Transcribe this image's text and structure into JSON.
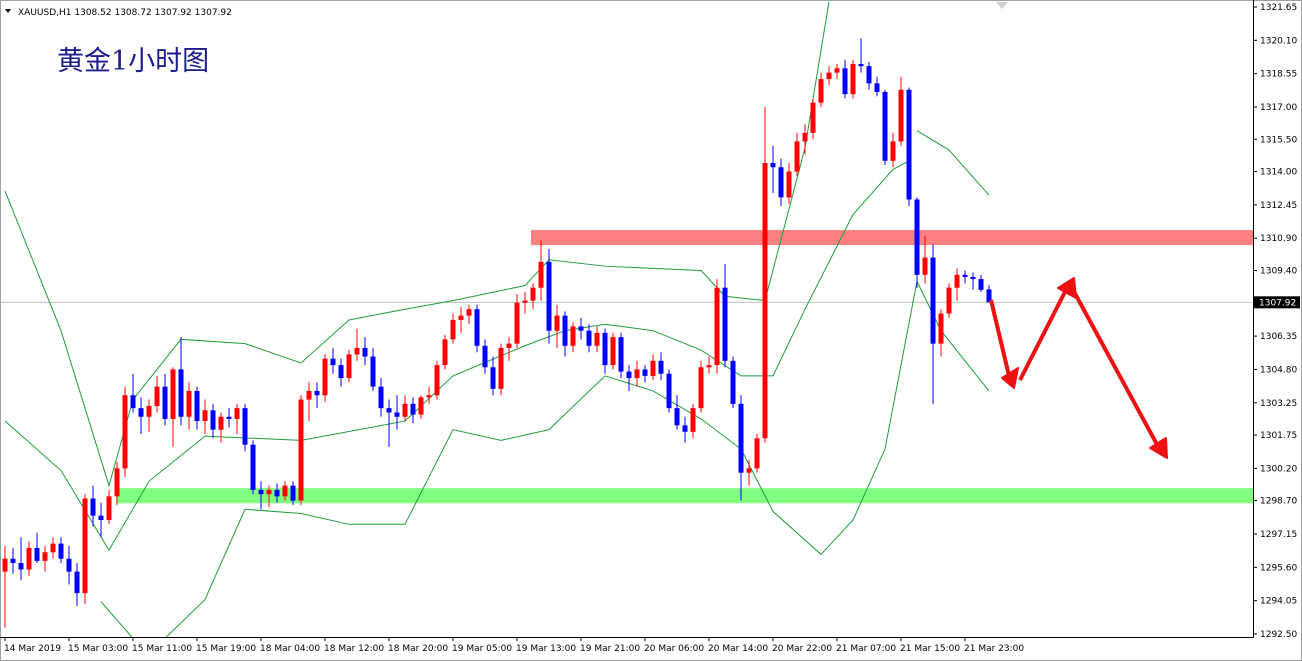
{
  "chart_data": {
    "type": "candlestick",
    "title": "黄金1小时图",
    "symbol": "XAUUSD,H1",
    "last_ohlc": [
      1308.52,
      1308.72,
      1307.92,
      1307.92
    ],
    "current_price": 1307.92,
    "up_color": "#ff0000",
    "down_color": "#0000ff",
    "categories": [
      "14 Mar 2019",
      null,
      null,
      null,
      null,
      null,
      null,
      null,
      "15 Mar 03:00",
      null,
      null,
      null,
      null,
      null,
      null,
      null,
      "15 Mar 11:00",
      null,
      null,
      null,
      null,
      null,
      null,
      null,
      "15 Mar 19:00",
      null,
      null,
      null,
      null,
      null,
      null,
      null,
      "18 Mar 04:00",
      null,
      null,
      null,
      null,
      null,
      null,
      null,
      "18 Mar 12:00",
      null,
      null,
      null,
      null,
      null,
      null,
      null,
      "18 Mar 20:00",
      null,
      null,
      null,
      null,
      null,
      null,
      null,
      "19 Mar 05:00",
      null,
      null,
      null,
      null,
      null,
      null,
      null,
      "19 Mar 13:00",
      null,
      null,
      null,
      null,
      null,
      null,
      null,
      "19 Mar 21:00",
      null,
      null,
      null,
      null,
      null,
      null,
      null,
      "20 Mar 06:00",
      null,
      null,
      null,
      null,
      null,
      null,
      null,
      "20 Mar 14:00",
      null,
      null,
      null,
      null,
      null,
      null,
      null,
      "20 Mar 22:00",
      null,
      null,
      null,
      null,
      null,
      null,
      null,
      "21 Mar 07:00",
      null,
      null,
      null,
      null,
      null,
      null,
      null,
      "21 Mar 15:00",
      null,
      null,
      null,
      null,
      null,
      null,
      null,
      "21 Mar 23:00",
      null,
      null,
      null
    ],
    "open": [
      1295.4,
      1296.0,
      1295.8,
      1295.5,
      1296.5,
      1295.9,
      1296.3,
      1296.7,
      1296.0,
      1295.4,
      1294.4,
      1298.8,
      1298.0,
      1297.8,
      1298.9,
      1300.2,
      1303.6,
      1303.0,
      1302.6,
      1303.1,
      1304.0,
      1302.5,
      1304.8,
      1302.6,
      1303.8,
      1302.4,
      1302.9,
      1302.0,
      1302.6,
      1302.5,
      1303.0,
      1301.3,
      1299.2,
      1299.0,
      1299.2,
      1298.9,
      1299.4,
      1298.7,
      1303.4,
      1303.8,
      1303.6,
      1305.3,
      1305.0,
      1304.4,
      1305.5,
      1305.8,
      1305.4,
      1304.0,
      1303.0,
      1302.8,
      1302.6,
      1303.2,
      1302.7,
      1303.5,
      1303.6,
      1305.0,
      1306.2,
      1307.1,
      1307.3,
      1307.6,
      1305.9,
      1304.9,
      1303.9,
      1305.8,
      1306.0,
      1307.9,
      1308.0,
      1308.6,
      1309.8,
      1306.6,
      1307.3,
      1305.9,
      1306.8,
      1306.6,
      1305.9,
      1306.5,
      1305.0,
      1306.3,
      1304.7,
      1304.4,
      1304.8,
      1304.5,
      1305.2,
      1304.6,
      1303.0,
      1302.2,
      1301.9,
      1303.0,
      1304.9,
      1305.0,
      1308.6,
      1305.2,
      1303.2,
      1300.0,
      1300.2,
      1301.6,
      1314.4,
      1314.2,
      1312.8,
      1314.0,
      1315.4,
      1315.8,
      1317.2,
      1318.3,
      1318.6,
      1318.8,
      1317.6,
      1319.0,
      1318.9,
      1318.1,
      1317.7,
      1314.5,
      1315.4,
      1317.8,
      1312.7,
      1309.2,
      1310.0,
      1306.0,
      1307.4,
      1308.6,
      1309.2,
      1309.1,
      1309.0,
      1308.52
    ],
    "high": [
      1296.6,
      1296.5,
      1297.0,
      1296.8,
      1297.2,
      1296.6,
      1297.0,
      1297.0,
      1296.6,
      1295.8,
      1299.0,
      1299.4,
      1298.6,
      1299.2,
      1300.5,
      1304.0,
      1304.6,
      1303.5,
      1303.4,
      1304.5,
      1304.6,
      1304.9,
      1306.3,
      1304.2,
      1304.0,
      1303.4,
      1303.2,
      1302.8,
      1303.0,
      1303.2,
      1303.2,
      1301.5,
      1299.6,
      1299.4,
      1299.5,
      1299.6,
      1299.6,
      1303.6,
      1304.2,
      1304.2,
      1305.5,
      1305.8,
      1305.3,
      1305.7,
      1306.7,
      1306.3,
      1305.8,
      1304.4,
      1303.4,
      1303.6,
      1303.6,
      1303.5,
      1303.6,
      1304.0,
      1305.2,
      1306.4,
      1307.4,
      1307.7,
      1307.8,
      1307.8,
      1306.2,
      1305.4,
      1306.0,
      1306.3,
      1308.3,
      1308.4,
      1308.8,
      1310.8,
      1310.4,
      1307.8,
      1307.5,
      1307.0,
      1307.2,
      1306.9,
      1306.8,
      1306.7,
      1306.5,
      1306.5,
      1305.0,
      1305.2,
      1305.0,
      1305.5,
      1305.6,
      1304.8,
      1303.6,
      1302.6,
      1303.2,
      1305.2,
      1305.4,
      1309.0,
      1309.7,
      1305.4,
      1303.6,
      1300.6,
      1301.8,
      1317.0,
      1315.2,
      1314.6,
      1314.4,
      1315.8,
      1316.2,
      1317.4,
      1318.6,
      1318.9,
      1319.0,
      1319.2,
      1319.2,
      1320.2,
      1319.1,
      1318.4,
      1317.8,
      1315.8,
      1318.4,
      1317.9,
      1312.8,
      1311.0,
      1310.6,
      1307.6,
      1308.8,
      1309.5,
      1309.4,
      1309.3,
      1309.2,
      1308.72
    ],
    "low": [
      1292.8,
      1295.3,
      1295.0,
      1295.2,
      1295.8,
      1295.4,
      1296.0,
      1295.8,
      1294.8,
      1293.8,
      1293.9,
      1297.5,
      1297.0,
      1297.6,
      1298.5,
      1299.8,
      1302.8,
      1301.8,
      1301.9,
      1302.8,
      1302.2,
      1301.2,
      1302.2,
      1302.0,
      1302.0,
      1301.8,
      1301.6,
      1301.4,
      1302.1,
      1301.8,
      1301.0,
      1299.0,
      1298.3,
      1298.4,
      1298.6,
      1298.7,
      1298.5,
      1298.5,
      1302.4,
      1303.0,
      1303.3,
      1304.6,
      1304.0,
      1304.2,
      1305.2,
      1305.0,
      1303.8,
      1302.6,
      1301.2,
      1302.0,
      1302.4,
      1302.3,
      1302.5,
      1303.2,
      1303.4,
      1304.8,
      1306.0,
      1306.5,
      1306.9,
      1305.6,
      1304.6,
      1303.6,
      1303.6,
      1305.2,
      1305.8,
      1307.4,
      1307.6,
      1308.0,
      1306.0,
      1305.8,
      1305.4,
      1305.6,
      1306.2,
      1305.6,
      1305.6,
      1304.6,
      1304.8,
      1304.4,
      1303.8,
      1304.0,
      1304.2,
      1304.3,
      1304.3,
      1302.8,
      1302.0,
      1301.4,
      1301.6,
      1302.8,
      1304.6,
      1304.6,
      1304.9,
      1303.0,
      1298.7,
      1299.4,
      1300.0,
      1301.4,
      1313.0,
      1312.4,
      1312.5,
      1313.8,
      1314.8,
      1315.5,
      1317.0,
      1318.0,
      1318.3,
      1317.4,
      1317.4,
      1318.6,
      1317.8,
      1317.5,
      1314.3,
      1314.2,
      1315.2,
      1312.4,
      1308.6,
      1308.8,
      1303.2,
      1305.4,
      1307.2,
      1308.0,
      1308.8,
      1308.5,
      1308.4,
      1307.92
    ],
    "close": [
      1296.0,
      1295.8,
      1295.5,
      1296.5,
      1295.9,
      1296.3,
      1296.7,
      1296.0,
      1295.4,
      1294.4,
      1298.8,
      1298.0,
      1297.8,
      1298.9,
      1300.2,
      1303.6,
      1303.0,
      1302.6,
      1303.1,
      1304.0,
      1302.5,
      1304.8,
      1302.6,
      1303.8,
      1302.4,
      1302.9,
      1302.0,
      1302.6,
      1302.5,
      1303.0,
      1301.3,
      1299.2,
      1299.0,
      1299.2,
      1298.9,
      1299.4,
      1298.7,
      1303.4,
      1303.8,
      1303.6,
      1305.3,
      1305.0,
      1304.4,
      1305.5,
      1305.8,
      1305.4,
      1304.0,
      1303.0,
      1302.8,
      1302.6,
      1303.2,
      1302.7,
      1303.5,
      1303.6,
      1305.0,
      1306.2,
      1307.1,
      1307.3,
      1307.6,
      1305.9,
      1304.9,
      1303.9,
      1305.8,
      1306.0,
      1307.9,
      1308.0,
      1308.6,
      1309.8,
      1306.6,
      1307.3,
      1305.9,
      1306.8,
      1306.6,
      1305.9,
      1306.5,
      1305.0,
      1306.3,
      1304.7,
      1304.4,
      1304.8,
      1304.5,
      1305.2,
      1304.6,
      1303.0,
      1302.2,
      1301.9,
      1303.0,
      1304.9,
      1305.0,
      1308.6,
      1305.2,
      1303.2,
      1300.0,
      1300.2,
      1301.6,
      1314.4,
      1314.2,
      1312.8,
      1314.0,
      1315.4,
      1315.8,
      1317.2,
      1318.3,
      1318.6,
      1318.8,
      1317.6,
      1319.0,
      1318.9,
      1318.1,
      1317.7,
      1314.5,
      1315.4,
      1317.8,
      1312.7,
      1309.2,
      1310.0,
      1306.0,
      1307.4,
      1308.6,
      1309.2,
      1309.1,
      1309.0,
      1308.5,
      1307.92
    ],
    "bands": [
      {
        "color": "#1f9e3a",
        "x": [
          0,
          7,
          13,
          16,
          22,
          30,
          37,
          43,
          50,
          56,
          65,
          68,
          75,
          81,
          87,
          90,
          95,
          100,
          103,
          null,
          114,
          118,
          123
        ],
        "values": [
          1313.1,
          1306.6,
          1299.4,
          1303.4,
          1306.2,
          1306.0,
          1305.1,
          1307.1,
          1307.6,
          1308.0,
          1308.7,
          1309.9,
          1309.6,
          1309.5,
          1309.4,
          1308.2,
          1308.0,
          1315.1,
          1321.9,
          null,
          1315.9,
          1315.0,
          1312.9
        ]
      },
      {
        "color": "#1f9e3a",
        "x": [
          0,
          7,
          13,
          18,
          25,
          37,
          50,
          56,
          65,
          70,
          75,
          81,
          87,
          92,
          96,
          100,
          106,
          111,
          113
        ],
        "values": [
          1302.4,
          1300.1,
          1296.4,
          1299.6,
          1301.7,
          1301.5,
          1302.4,
          1304.5,
          1305.9,
          1306.6,
          1306.9,
          1306.6,
          1305.7,
          1304.5,
          1304.5,
          1307.6,
          1312.0,
          1314.1,
          1314.5
        ]
      },
      {
        "color": "#1f9e3a",
        "x": [
          12,
          16,
          18,
          20,
          25,
          30,
          37,
          43,
          50,
          56,
          62,
          68,
          75,
          81,
          87,
          92,
          96,
          102,
          106,
          110,
          114,
          117,
          123
        ],
        "values": [
          1294.0,
          1292.3,
          1291.8,
          1292.3,
          1294.1,
          1298.3,
          1298.1,
          1297.6,
          1297.6,
          1302.0,
          1301.5,
          1302.0,
          1304.5,
          1303.8,
          1302.5,
          1301.1,
          1298.2,
          1296.2,
          1297.8,
          1301.1,
          1308.9,
          1306.6,
          1303.8
        ]
      }
    ],
    "zones": [
      {
        "from": 1310.58,
        "to": 1311.28,
        "start": 65.75,
        "color": "#ff8080"
      },
      {
        "from": 1298.58,
        "to": 1299.28,
        "start": 13.9,
        "color": "#80ff80"
      }
    ],
    "ylim": [
      1292.5,
      1321.65
    ],
    "yticks": [
      1321.65,
      {
        "value": 1320.1,
        "label": "1320.10"
      },
      1318.55,
      {
        "value": 1317.0,
        "label": "1317.00"
      },
      {
        "value": 1315.5,
        "label": "1315.50"
      },
      {
        "value": 1314.0,
        "label": "1314.00"
      },
      1312.45,
      {
        "value": 1310.9,
        "label": "1310.90"
      },
      {
        "value": 1309.4,
        "label": "1309.40"
      },
      1306.35,
      {
        "value": 1304.8,
        "label": "1304.80"
      },
      1303.25,
      1301.75,
      {
        "value": 1300.2,
        "label": "1300.20"
      },
      {
        "value": 1298.7,
        "label": "1298.70"
      },
      1297.15,
      {
        "value": 1295.6,
        "label": "1295.60"
      },
      1294.05,
      {
        "value": 1292.5,
        "label": "1292.50"
      }
    ]
  }
}
